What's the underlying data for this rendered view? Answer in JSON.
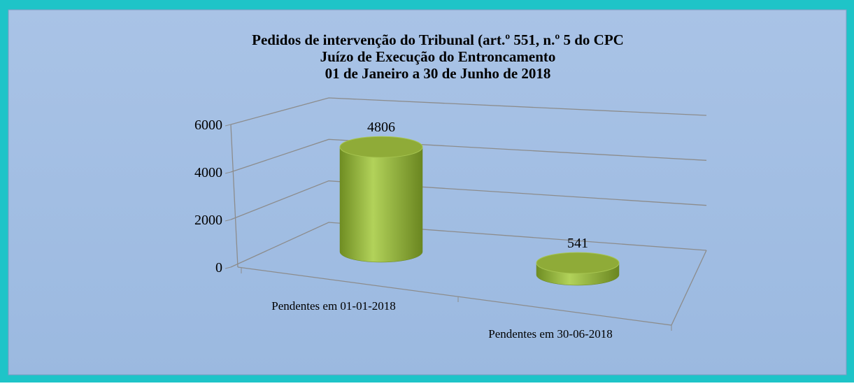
{
  "chart_data": {
    "type": "bar3d",
    "title": [
      "Pedidos de intervenção do Tribunal (art.º 551, n.º 5 do CPC",
      "Juízo de Execução do Entroncamento",
      "01 de Janeiro a 30 de Junho de 2018"
    ],
    "categories": [
      "Pendentes em 01-01-2018",
      "Pendentes em 30-06-2018"
    ],
    "values": [
      4806,
      541
    ],
    "color": "#9dbd45",
    "ylim": [
      0,
      6000
    ],
    "yticks": [
      0,
      2000,
      4000,
      6000
    ],
    "grid": true
  }
}
